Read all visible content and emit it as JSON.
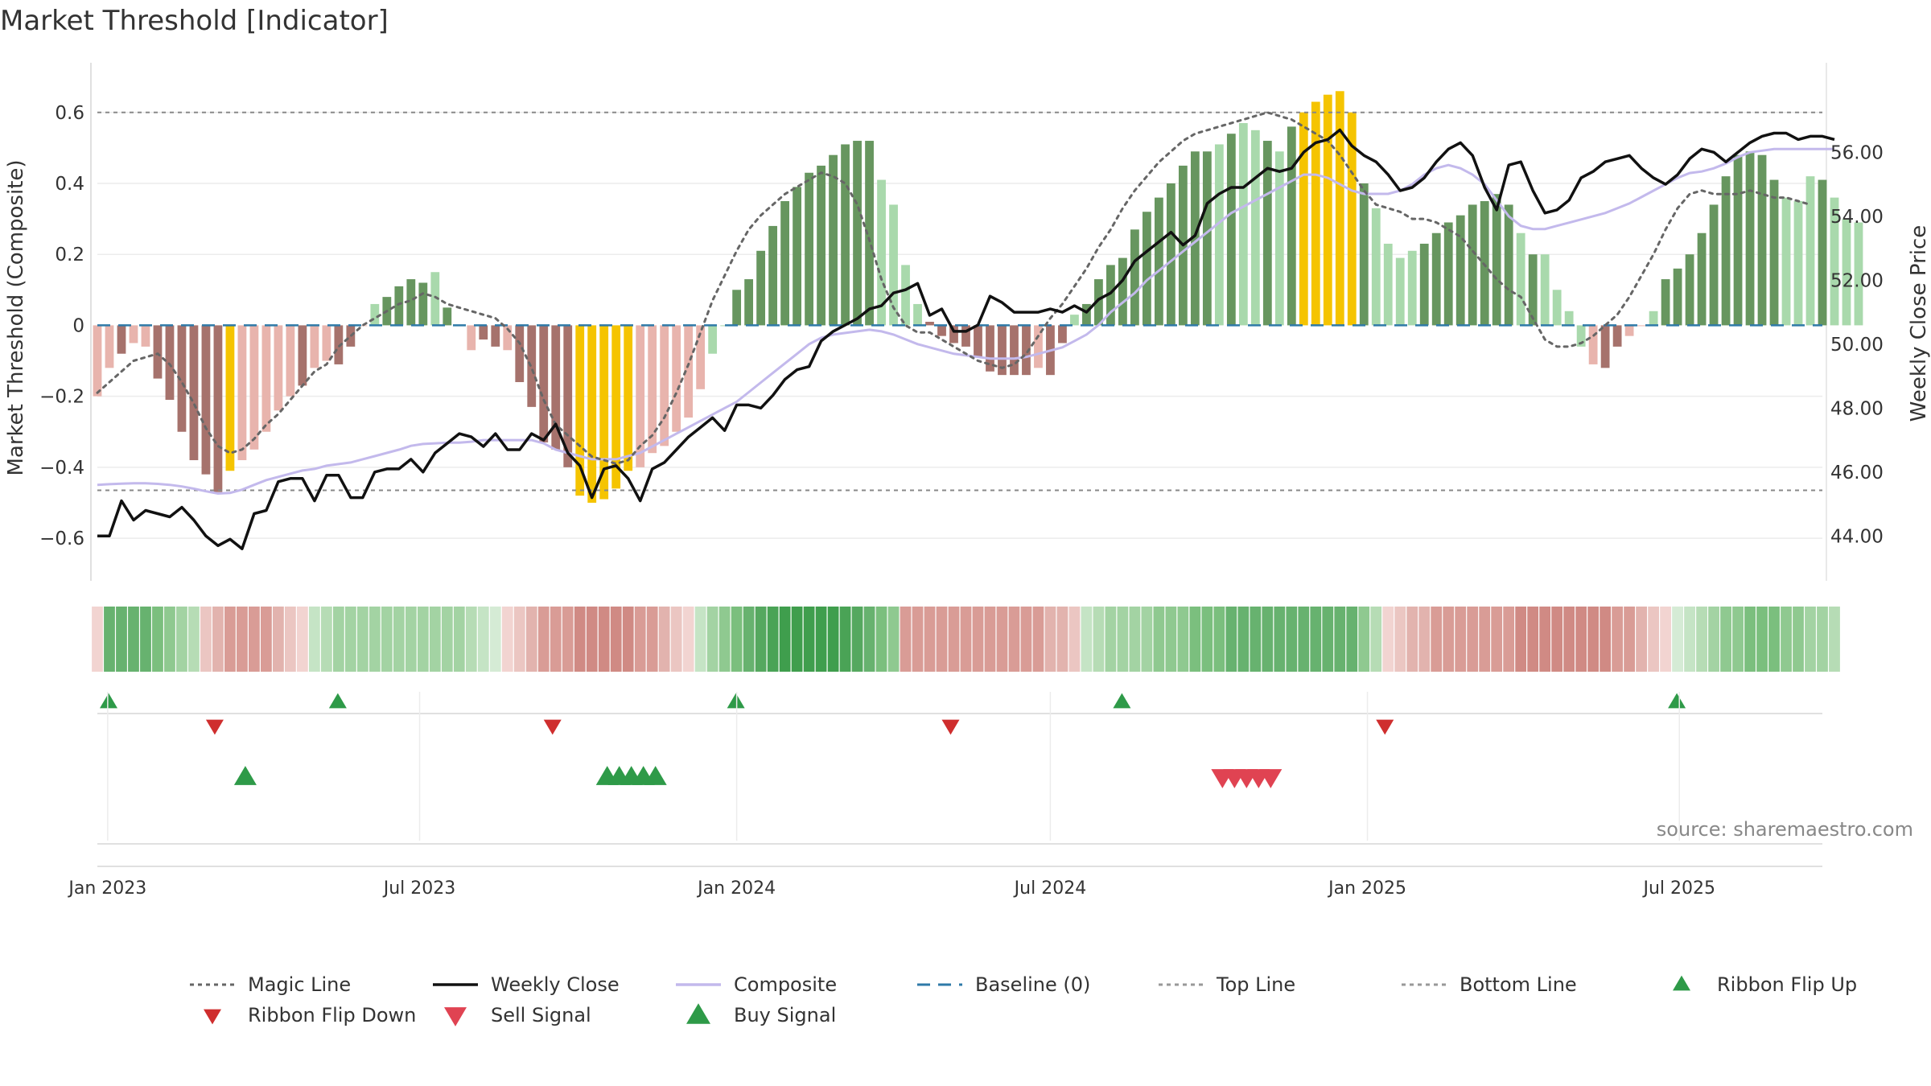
{
  "chart_data": [
    {
      "type": "bar",
      "title": "Market Threshold [Indicator]",
      "ylabel": "Market Threshold (Composite)",
      "y2label": "Weekly Close Price",
      "ylim": [
        -0.72,
        0.74
      ],
      "y2lim": [
        42.6,
        58.8
      ],
      "yticks": [
        0.6,
        0.4,
        0.2,
        0,
        -0.2,
        -0.4,
        -0.6
      ],
      "ytick_labels": [
        "0.6",
        "0.4",
        "0.2",
        "0",
        "−0.2",
        "−0.4",
        "−0.6"
      ],
      "y2ticks": [
        56,
        54,
        52,
        50,
        48,
        46,
        44
      ],
      "y2tick_labels": [
        "56.00",
        "54.00",
        "52.00",
        "50.00",
        "48.00",
        "46.00",
        "44.00"
      ],
      "x_start": "2022-12-26",
      "x_end": "2025-09-22",
      "xticks": [
        "2023-01-01",
        "2023-07-01",
        "2024-01-01",
        "2024-07-01",
        "2025-01-01",
        "2025-07-01"
      ],
      "xtick_labels": [
        "Jan 2023",
        "Jul 2023",
        "Jan 2024",
        "Jul 2024",
        "Jan 2025",
        "Jul 2025"
      ],
      "top_line": 0.6,
      "bottom_line": -0.465,
      "composite": [
        -0.2,
        -0.12,
        -0.08,
        -0.05,
        -0.06,
        -0.15,
        -0.21,
        -0.3,
        -0.38,
        -0.42,
        -0.47,
        -0.41,
        -0.38,
        -0.35,
        -0.3,
        -0.24,
        -0.2,
        -0.17,
        -0.12,
        -0.1,
        -0.11,
        -0.06,
        0,
        0.06,
        0.08,
        0.11,
        0.13,
        0.12,
        0.15,
        0.05,
        0,
        -0.07,
        -0.04,
        -0.06,
        -0.07,
        -0.16,
        -0.23,
        -0.33,
        -0.35,
        -0.4,
        -0.48,
        -0.5,
        -0.49,
        -0.46,
        -0.41,
        -0.4,
        -0.36,
        -0.34,
        -0.3,
        -0.26,
        -0.18,
        -0.08,
        0,
        0.1,
        0.13,
        0.21,
        0.28,
        0.35,
        0.39,
        0.43,
        0.45,
        0.48,
        0.51,
        0.52,
        0.52,
        0.41,
        0.34,
        0.17,
        0.06,
        0.01,
        -0.03,
        -0.05,
        -0.06,
        -0.09,
        -0.13,
        -0.14,
        -0.14,
        -0.14,
        -0.12,
        -0.14,
        -0.05,
        0.03,
        0.06,
        0.13,
        0.17,
        0.19,
        0.27,
        0.32,
        0.36,
        0.4,
        0.45,
        0.49,
        0.49,
        0.51,
        0.54,
        0.57,
        0.55,
        0.52,
        0.49,
        0.56,
        0.6,
        0.63,
        0.65,
        0.66,
        0.6,
        0.4,
        0.33,
        0.23,
        0.19,
        0.21,
        0.23,
        0.26,
        0.29,
        0.31,
        0.34,
        0.35,
        0.37,
        0.34,
        0.26,
        0.2,
        0.2,
        0.1,
        0.04,
        -0.06,
        -0.11,
        -0.12,
        -0.06,
        -0.03,
        0,
        0.04,
        0.13,
        0.16,
        0.2,
        0.26,
        0.34,
        0.42,
        0.48,
        0.49,
        0.48,
        0.41,
        0.36,
        0.35,
        0.42,
        0.41,
        0.36,
        0.3,
        0.29
      ],
      "magic_line": [
        -0.19,
        -0.16,
        -0.13,
        -0.1,
        -0.09,
        -0.08,
        -0.11,
        -0.16,
        -0.22,
        -0.29,
        -0.34,
        -0.36,
        -0.35,
        -0.32,
        -0.28,
        -0.25,
        -0.21,
        -0.17,
        -0.13,
        -0.11,
        -0.06,
        -0.03,
        0,
        0.02,
        0.04,
        0.06,
        0.07,
        0.09,
        0.08,
        0.06,
        0.05,
        0.04,
        0.03,
        0.02,
        -0.01,
        -0.05,
        -0.12,
        -0.21,
        -0.28,
        -0.31,
        -0.34,
        -0.37,
        -0.38,
        -0.39,
        -0.38,
        -0.34,
        -0.31,
        -0.26,
        -0.19,
        -0.11,
        -0.02,
        0.07,
        0.14,
        0.21,
        0.27,
        0.31,
        0.34,
        0.37,
        0.39,
        0.41,
        0.43,
        0.42,
        0.4,
        0.34,
        0.24,
        0.13,
        0.05,
        0,
        -0.02,
        -0.02,
        -0.04,
        -0.06,
        -0.08,
        -0.1,
        -0.11,
        -0.12,
        -0.11,
        -0.08,
        -0.03,
        0.02,
        0.06,
        0.11,
        0.16,
        0.22,
        0.27,
        0.33,
        0.38,
        0.42,
        0.46,
        0.49,
        0.52,
        0.54,
        0.55,
        0.56,
        0.57,
        0.58,
        0.59,
        0.6,
        0.59,
        0.58,
        0.56,
        0.54,
        0.52,
        0.48,
        0.43,
        0.38,
        0.34,
        0.33,
        0.32,
        0.3,
        0.3,
        0.29,
        0.27,
        0.25,
        0.21,
        0.17,
        0.13,
        0.1,
        0.08,
        0.02,
        -0.04,
        -0.06,
        -0.06,
        -0.05,
        -0.03,
        0,
        0.03,
        0.08,
        0.14,
        0.2,
        0.27,
        0.33,
        0.37,
        0.38,
        0.37,
        0.37,
        0.37,
        0.38,
        0.37,
        0.36,
        0.36,
        0.35,
        0.34
      ],
      "composite_smooth": [
        45.6,
        45.62,
        45.64,
        45.65,
        45.65,
        45.63,
        45.6,
        45.55,
        45.48,
        45.4,
        45.33,
        45.35,
        45.45,
        45.6,
        45.75,
        45.85,
        45.95,
        46.05,
        46.1,
        46.2,
        46.25,
        46.3,
        46.4,
        46.5,
        46.6,
        46.7,
        46.82,
        46.88,
        46.9,
        46.92,
        46.92,
        46.95,
        47.0,
        47.0,
        47.0,
        47.0,
        47.0,
        46.9,
        46.7,
        46.6,
        46.5,
        46.4,
        46.4,
        46.4,
        46.5,
        46.6,
        46.8,
        47.0,
        47.2,
        47.4,
        47.6,
        47.8,
        48.0,
        48.2,
        48.5,
        48.8,
        49.1,
        49.4,
        49.7,
        50.0,
        50.2,
        50.3,
        50.35,
        50.4,
        50.45,
        50.4,
        50.3,
        50.15,
        50.0,
        49.9,
        49.8,
        49.7,
        49.65,
        49.6,
        49.55,
        49.55,
        49.55,
        49.6,
        49.7,
        49.8,
        49.9,
        50.1,
        50.3,
        50.6,
        51.0,
        51.3,
        51.6,
        52.0,
        52.3,
        52.6,
        52.9,
        53.2,
        53.5,
        53.8,
        54.1,
        54.3,
        54.5,
        54.7,
        54.9,
        55.1,
        55.3,
        55.3,
        55.2,
        55.0,
        54.8,
        54.7,
        54.7,
        54.7,
        54.8,
        55.0,
        55.3,
        55.5,
        55.6,
        55.5,
        55.3,
        55.0,
        54.5,
        54.0,
        53.7,
        53.6,
        53.6,
        53.7,
        53.8,
        53.9,
        54.0,
        54.1,
        54.25,
        54.4,
        54.6,
        54.8,
        55.0,
        55.2,
        55.35,
        55.4,
        55.5,
        55.65,
        55.85,
        56.0,
        56.05,
        56.1,
        56.1,
        56.1,
        56.1,
        56.1,
        56.1
      ],
      "weekly_close": [
        44.0,
        44.0,
        45.1,
        44.5,
        44.8,
        44.7,
        44.6,
        44.9,
        44.5,
        44.0,
        43.7,
        43.9,
        43.6,
        44.7,
        44.8,
        45.7,
        45.8,
        45.8,
        45.1,
        45.9,
        45.9,
        45.2,
        45.2,
        46.0,
        46.1,
        46.1,
        46.4,
        46.0,
        46.6,
        46.9,
        47.2,
        47.1,
        46.8,
        47.2,
        46.7,
        46.7,
        47.2,
        47.0,
        47.5,
        46.6,
        46.2,
        45.2,
        46.1,
        46.2,
        45.8,
        45.1,
        46.1,
        46.3,
        46.7,
        47.1,
        47.4,
        47.7,
        47.3,
        48.1,
        48.1,
        48.0,
        48.4,
        48.9,
        49.2,
        49.3,
        50.1,
        50.4,
        50.6,
        50.8,
        51.1,
        51.2,
        51.6,
        51.7,
        51.9,
        50.9,
        51.1,
        50.4,
        50.4,
        50.6,
        51.5,
        51.3,
        51.0,
        51.0,
        51.0,
        51.1,
        51.0,
        51.2,
        51.0,
        51.4,
        51.6,
        52.0,
        52.6,
        52.9,
        53.2,
        53.5,
        53.1,
        53.4,
        54.4,
        54.7,
        54.9,
        54.9,
        55.2,
        55.5,
        55.4,
        55.5,
        56.0,
        56.3,
        56.4,
        56.7,
        56.2,
        55.9,
        55.7,
        55.3,
        54.8,
        54.9,
        55.2,
        55.7,
        56.1,
        56.3,
        55.9,
        54.9,
        54.2,
        55.6,
        55.7,
        54.8,
        54.1,
        54.2,
        54.5,
        55.2,
        55.4,
        55.7,
        55.8,
        55.9,
        55.5,
        55.2,
        55.0,
        55.3,
        55.8,
        56.1,
        56.0,
        55.7,
        56.0,
        56.3,
        56.5,
        56.6,
        56.6,
        56.4,
        56.5,
        56.5,
        56.4
      ],
      "bar_colors": [
        "#e8b4ad",
        "#e8b4ad",
        "#a6726c",
        "#e8b4ad",
        "#e8b4ad",
        "#a6726c",
        "#a6726c",
        "#a6726c",
        "#a6726c",
        "#a6726c",
        "#a6726c",
        "#f5c400",
        "#e8b4ad",
        "#e8b4ad",
        "#e8b4ad",
        "#e8b4ad",
        "#e8b4ad",
        "#a6726c",
        "#e8b4ad",
        "#e8b4ad",
        "#a6726c",
        "#a6726c",
        "#e8b4ad",
        "#a9d9ac",
        "#67965f",
        "#67965f",
        "#67965f",
        "#67965f",
        "#a9d9ac",
        "#67965f",
        "#a9d9ac",
        "#e8b4ad",
        "#a6726c",
        "#a6726c",
        "#e8b4ad",
        "#a6726c",
        "#a6726c",
        "#a6726c",
        "#a6726c",
        "#a6726c",
        "#f5c400",
        "#f5c400",
        "#f5c400",
        "#f5c400",
        "#f5c400",
        "#e8b4ad",
        "#e8b4ad",
        "#e8b4ad",
        "#e8b4ad",
        "#e8b4ad",
        "#e8b4ad",
        "#a9d9ac",
        "#a9d9ac",
        "#67965f",
        "#67965f",
        "#67965f",
        "#67965f",
        "#67965f",
        "#67965f",
        "#67965f",
        "#67965f",
        "#67965f",
        "#67965f",
        "#67965f",
        "#67965f",
        "#a9d9ac",
        "#a9d9ac",
        "#a9d9ac",
        "#a9d9ac",
        "#a6726c",
        "#a6726c",
        "#a6726c",
        "#a6726c",
        "#a6726c",
        "#a6726c",
        "#a6726c",
        "#a6726c",
        "#a6726c",
        "#e8b4ad",
        "#a6726c",
        "#a6726c",
        "#a9d9ac",
        "#67965f",
        "#67965f",
        "#67965f",
        "#67965f",
        "#67965f",
        "#67965f",
        "#67965f",
        "#67965f",
        "#67965f",
        "#67965f",
        "#67965f",
        "#a9d9ac",
        "#67965f",
        "#a9d9ac",
        "#a9d9ac",
        "#67965f",
        "#a9d9ac",
        "#67965f",
        "#f5c400",
        "#f5c400",
        "#f5c400",
        "#f5c400",
        "#f5c400",
        "#67965f",
        "#a9d9ac",
        "#a9d9ac",
        "#a9d9ac",
        "#a9d9ac",
        "#67965f",
        "#67965f",
        "#67965f",
        "#67965f",
        "#67965f",
        "#67965f",
        "#67965f",
        "#67965f",
        "#a9d9ac",
        "#67965f",
        "#a9d9ac",
        "#a9d9ac",
        "#a9d9ac",
        "#a9d9ac",
        "#e8b4ad",
        "#a6726c",
        "#a6726c",
        "#e8b4ad",
        "#e8b4ad",
        "#a9d9ac",
        "#67965f",
        "#67965f",
        "#67965f",
        "#67965f",
        "#67965f",
        "#67965f",
        "#67965f",
        "#67965f",
        "#67965f",
        "#67965f",
        "#a9d9ac",
        "#a9d9ac",
        "#a9d9ac",
        "#67965f",
        "#a9d9ac",
        "#a9d9ac",
        "#a9d9ac",
        "#a9d9ac"
      ],
      "ribbon_colors": [
        "#f2d4d1",
        "#67b26f",
        "#67b26f",
        "#67b26f",
        "#67b26f",
        "#7bbf7e",
        "#8fc990",
        "#a3d3a3",
        "#b6dcb5",
        "#ebc6c2",
        "#e2b3ae",
        "#d99c96",
        "#d99c96",
        "#d99c96",
        "#d99c96",
        "#e2b3ae",
        "#ebc6c2",
        "#f2d4d1",
        "#c5e4c5",
        "#b6dcb5",
        "#a3d3a3",
        "#a3d3a3",
        "#a3d3a3",
        "#a3d3a3",
        "#a3d3a3",
        "#a3d3a3",
        "#a3d3a3",
        "#a3d3a3",
        "#a3d3a3",
        "#a3d3a3",
        "#a3d3a3",
        "#b6dcb5",
        "#c5e4c5",
        "#d5ebd5",
        "#f2d4d1",
        "#ebc6c2",
        "#e2b3ae",
        "#d99c96",
        "#d99c96",
        "#d99c96",
        "#d08a84",
        "#d08a84",
        "#d08a84",
        "#d08a84",
        "#d08a84",
        "#d99c96",
        "#d99c96",
        "#e2b3ae",
        "#ebc6c2",
        "#f2d4d1",
        "#c5e4c5",
        "#a3d3a3",
        "#8fc990",
        "#7bbf7e",
        "#67b26f",
        "#55a85f",
        "#4aa356",
        "#3f9e4d",
        "#3f9e4d",
        "#3f9e4d",
        "#3f9e4d",
        "#3f9e4d",
        "#4aa356",
        "#55a85f",
        "#67b26f",
        "#7bbf7e",
        "#8fc990",
        "#d99c96",
        "#d99c96",
        "#d99c96",
        "#d99c96",
        "#d99c96",
        "#d99c96",
        "#d99c96",
        "#d99c96",
        "#d99c96",
        "#d99c96",
        "#d99c96",
        "#d99c96",
        "#e2b3ae",
        "#e2b3ae",
        "#ebc6c2",
        "#c5e4c5",
        "#b6dcb5",
        "#a3d3a3",
        "#a3d3a3",
        "#a3d3a3",
        "#a3d3a3",
        "#8fc990",
        "#8fc990",
        "#8fc990",
        "#7bbf7e",
        "#7bbf7e",
        "#7bbf7e",
        "#67b26f",
        "#67b26f",
        "#67b26f",
        "#67b26f",
        "#67b26f",
        "#67b26f",
        "#67b26f",
        "#67b26f",
        "#67b26f",
        "#67b26f",
        "#67b26f",
        "#8fc990",
        "#b6dcb5",
        "#f2d4d1",
        "#ebc6c2",
        "#e2b3ae",
        "#e2b3ae",
        "#d99c96",
        "#d99c96",
        "#d99c96",
        "#d99c96",
        "#d99c96",
        "#d99c96",
        "#d99c96",
        "#d08a84",
        "#d08a84",
        "#d08a84",
        "#d08a84",
        "#d08a84",
        "#d08a84",
        "#d08a84",
        "#d08a84",
        "#d99c96",
        "#d99c96",
        "#e2b3ae",
        "#ebc6c2",
        "#f2d4d1",
        "#d5ebd5",
        "#c5e4c5",
        "#b6dcb5",
        "#a3d3a3",
        "#8fc990",
        "#8fc990",
        "#7bbf7e",
        "#7bbf7e",
        "#7bbf7e",
        "#8fc990",
        "#8fc990",
        "#a3d3a3",
        "#a3d3a3",
        "#b6dcb5"
      ],
      "ribbon_flip_up": [
        "2022-12-26",
        "2023-05-08",
        "2023-12-25",
        "2024-08-05",
        "2025-06-23"
      ],
      "ribbon_flip_down": [
        "2023-03-06",
        "2023-09-18",
        "2024-05-06",
        "2025-01-13"
      ],
      "buy_signal": [
        "2023-03-20",
        "2023-10-16",
        "2023-10-23",
        "2023-10-30",
        "2023-11-06",
        "2023-11-13"
      ],
      "sell_signal": [
        "2024-10-07",
        "2024-10-14",
        "2024-10-21",
        "2024-10-28",
        "2024-11-04"
      ]
    }
  ],
  "source": "source: sharemaestro.com",
  "legend": [
    {
      "label": "Magic Line",
      "icon": "dotted-line",
      "color": "#666666"
    },
    {
      "label": "Weekly Close",
      "icon": "solid-line",
      "color": "#111111"
    },
    {
      "label": "Composite",
      "icon": "solid-line",
      "color": "#c3b9ec"
    },
    {
      "label": "Baseline (0)",
      "icon": "dashed-line",
      "color": "#2f7aa8"
    },
    {
      "label": "Top Line",
      "icon": "dotted-line",
      "color": "#999999"
    },
    {
      "label": "Bottom Line",
      "icon": "dotted-line",
      "color": "#999999"
    },
    {
      "label": "Ribbon Flip Up",
      "icon": "triangle-up",
      "color": "#2e9a48"
    },
    {
      "label": "Ribbon Flip Down",
      "icon": "triangle-down",
      "color": "#cf2e2e"
    },
    {
      "label": "Sell Signal",
      "icon": "triangle-down",
      "color": "#e04352"
    },
    {
      "label": "Buy Signal",
      "icon": "triangle-up",
      "color": "#2e9a48"
    }
  ]
}
